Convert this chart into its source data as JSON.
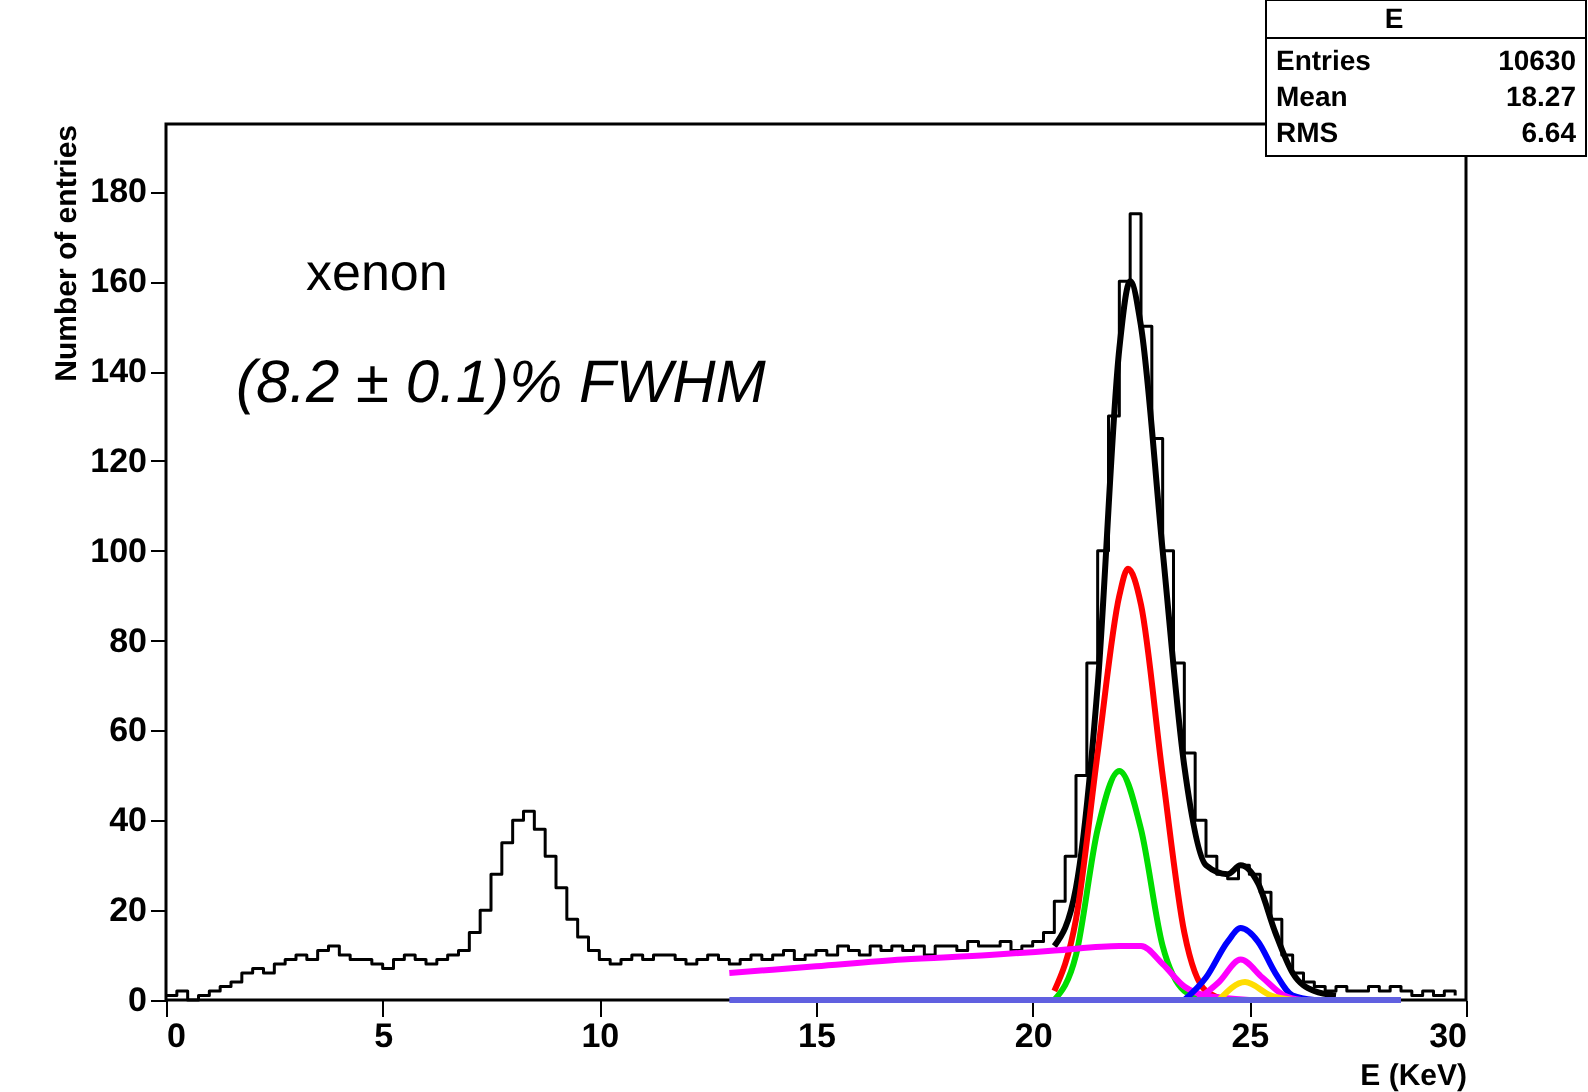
{
  "chart_data": {
    "type": "line",
    "xlabel": "E (KeV)",
    "ylabel": "Number of entries",
    "xlim": [
      0,
      30
    ],
    "ylim": [
      0,
      195
    ],
    "xticks": [
      0,
      5,
      10,
      15,
      20,
      25,
      30
    ],
    "yticks": [
      0,
      20,
      40,
      60,
      80,
      100,
      120,
      140,
      160,
      180
    ],
    "grid": false,
    "marker": "none",
    "annotations": [
      "xenon",
      "(8.2 ± 0.1)% FWHM",
      "E",
      "Entries",
      "10630",
      "Mean",
      "18.27",
      "RMS",
      "6.64"
    ],
    "series": [
      {
        "type": "step",
        "color": "#000000",
        "x": [
          0,
          0.25,
          0.5,
          0.75,
          1,
          1.25,
          1.5,
          1.75,
          2,
          2.25,
          2.5,
          2.75,
          3,
          3.25,
          3.5,
          3.75,
          4,
          4.25,
          4.5,
          4.75,
          5,
          5.25,
          5.5,
          5.75,
          6,
          6.25,
          6.5,
          6.75,
          7,
          7.25,
          7.5,
          7.75,
          8,
          8.25,
          8.5,
          8.75,
          9,
          9.25,
          9.5,
          9.75,
          10,
          10.25,
          10.5,
          10.75,
          11,
          11.25,
          11.5,
          11.75,
          12,
          12.25,
          12.5,
          12.75,
          13,
          13.25,
          13.5,
          13.75,
          14,
          14.25,
          14.5,
          14.75,
          15,
          15.25,
          15.5,
          15.75,
          16,
          16.25,
          16.5,
          16.75,
          17,
          17.25,
          17.5,
          17.75,
          18,
          18.25,
          18.5,
          18.75,
          19,
          19.25,
          19.5,
          19.75,
          20,
          20.25,
          20.5,
          20.75,
          21,
          21.25,
          21.5,
          21.75,
          22,
          22.25,
          22.5,
          22.75,
          23,
          23.25,
          23.5,
          23.75,
          24,
          24.25,
          24.5,
          24.75,
          25,
          25.25,
          25.5,
          25.75,
          26,
          26.25,
          26.5,
          26.75,
          27,
          27.25,
          27.5,
          27.75,
          28,
          28.25,
          28.5,
          28.75,
          29,
          29.25,
          29.5,
          29.75
        ],
        "values": [
          1,
          2,
          0,
          1,
          2,
          3,
          4,
          6,
          7,
          6,
          8,
          9,
          10,
          9,
          11,
          12,
          10,
          9,
          9,
          8,
          7,
          9,
          10,
          9,
          8,
          9,
          10,
          11,
          15,
          20,
          28,
          35,
          40,
          42,
          38,
          32,
          25,
          18,
          14,
          11,
          9,
          8,
          9,
          10,
          9,
          10,
          10,
          9,
          8,
          9,
          10,
          9,
          8,
          9,
          10,
          9,
          10,
          11,
          9,
          10,
          11,
          10,
          12,
          11,
          10,
          12,
          11,
          12,
          11,
          12,
          10,
          12,
          12,
          11,
          13,
          12,
          12,
          13,
          11,
          12,
          13,
          15,
          22,
          32,
          50,
          75,
          100,
          130,
          160,
          175,
          150,
          125,
          100,
          75,
          55,
          40,
          32,
          28,
          27,
          30,
          28,
          24,
          18,
          10,
          6,
          4,
          3,
          2,
          3,
          2,
          2,
          3,
          2,
          3,
          2,
          1,
          2,
          1,
          2,
          1
        ]
      },
      {
        "type": "line",
        "color": "#000000",
        "x": [
          20.5,
          21,
          21.5,
          22,
          22.25,
          22.5,
          23,
          23.5,
          24,
          24.5,
          24.8,
          25.2,
          25.6,
          26,
          26.5,
          27
        ],
        "values": [
          12,
          25,
          70,
          145,
          160,
          150,
          100,
          52,
          30,
          28,
          30,
          26,
          15,
          6,
          2,
          1
        ]
      },
      {
        "type": "line",
        "color": "#ff0000",
        "x": [
          20.5,
          21,
          21.5,
          22,
          22.2,
          22.5,
          23,
          23.5,
          24,
          24.5
        ],
        "values": [
          2,
          18,
          55,
          90,
          96,
          88,
          50,
          15,
          2,
          0
        ]
      },
      {
        "type": "line",
        "color": "#00dd00",
        "x": [
          20.5,
          21,
          21.5,
          22,
          22.5,
          23,
          23.5,
          24
        ],
        "values": [
          0,
          10,
          38,
          51,
          38,
          12,
          2,
          0
        ]
      },
      {
        "type": "line",
        "color": "#ff00ff",
        "x": [
          13,
          15,
          17,
          19,
          20.5,
          22,
          22.5,
          23,
          23.5,
          24,
          25
        ],
        "values": [
          6,
          7.5,
          9,
          10,
          11,
          12,
          12,
          8,
          3,
          1,
          0
        ]
      },
      {
        "type": "line",
        "color": "#0000ff",
        "x": [
          23.5,
          24,
          24.5,
          24.8,
          25.2,
          25.6,
          26,
          26.5
        ],
        "values": [
          0,
          5,
          13,
          16,
          13,
          6,
          1,
          0
        ]
      },
      {
        "type": "line",
        "color": "#ff00ff",
        "x": [
          23.8,
          24.3,
          24.8,
          25.3,
          25.8,
          26.2
        ],
        "values": [
          0,
          4,
          9,
          5,
          1,
          0
        ]
      },
      {
        "type": "line",
        "color": "#ffdd00",
        "x": [
          24.3,
          24.9,
          25.5,
          26
        ],
        "values": [
          0,
          4,
          1,
          0
        ]
      },
      {
        "type": "line",
        "color": "#6060e0",
        "x": [
          13,
          28.5
        ],
        "values": [
          0,
          0
        ]
      }
    ]
  }
}
